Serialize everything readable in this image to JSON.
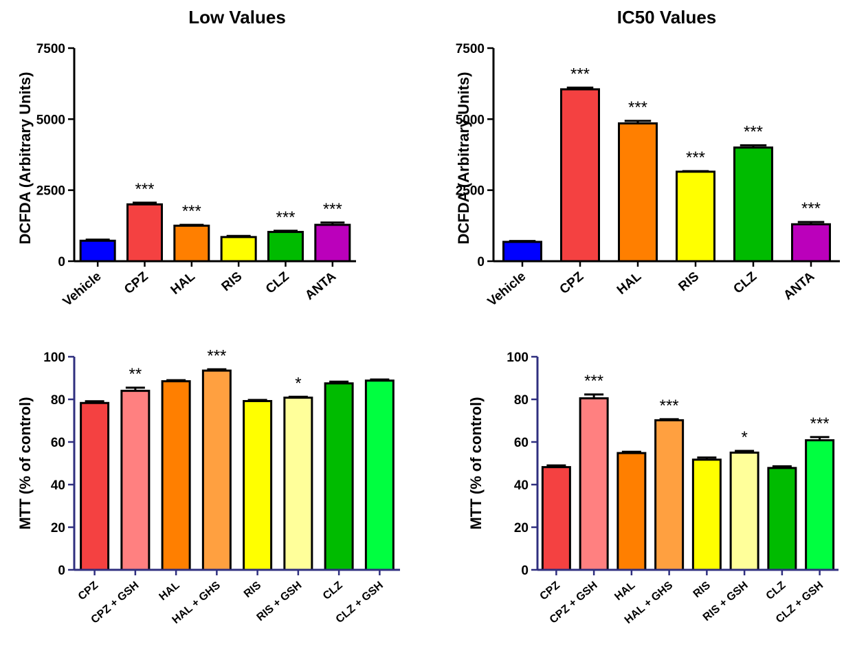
{
  "chart_data": [
    {
      "type": "bar",
      "title": "Low Values",
      "ylabel": "DCFDA (Arbitrary Units)",
      "ylim": [
        0,
        7500
      ],
      "yticks": [
        0,
        2500,
        5000,
        7500
      ],
      "grid": false,
      "categories": [
        "Vehicle",
        "CPZ",
        "HAL",
        "RIS",
        "CLZ",
        "ANTA"
      ],
      "values": [
        720,
        2000,
        1250,
        850,
        1030,
        1280
      ],
      "errors": [
        40,
        60,
        30,
        40,
        40,
        80
      ],
      "colors": [
        "#0000ff",
        "#f44141",
        "#ff7f00",
        "#ffff00",
        "#00bb00",
        "#bb00bb"
      ],
      "significance": [
        "",
        "***",
        "***",
        "",
        "***",
        "***"
      ]
    },
    {
      "type": "bar",
      "title": "IC50 Values",
      "ylabel": "DCFDA (Arbitrary Units)",
      "ylim": [
        0,
        7500
      ],
      "yticks": [
        0,
        2500,
        5000,
        7500
      ],
      "grid": false,
      "categories": [
        "Vehicle",
        "CPZ",
        "HAL",
        "RIS",
        "CLZ",
        "ANTA"
      ],
      "values": [
        680,
        6050,
        4850,
        3150,
        4000,
        1300
      ],
      "errors": [
        30,
        60,
        90,
        20,
        80,
        80
      ],
      "colors": [
        "#0000ff",
        "#f44141",
        "#ff7f00",
        "#ffff00",
        "#00bb00",
        "#bb00bb"
      ],
      "significance": [
        "",
        "***",
        "***",
        "***",
        "***",
        "***"
      ]
    },
    {
      "type": "bar",
      "title": "",
      "ylabel": "MTT (% of control)",
      "ylim": [
        0,
        100
      ],
      "yticks": [
        0,
        20,
        40,
        60,
        80,
        100
      ],
      "grid": false,
      "categories": [
        "CPZ",
        "CPZ + GSH",
        "HAL",
        "HAL + GHS",
        "RIS",
        "RIS + GSH",
        "CLZ",
        "CLZ + GSH"
      ],
      "values": [
        78.3,
        84.0,
        88.5,
        93.5,
        79.2,
        80.8,
        87.5,
        88.8
      ],
      "errors": [
        0.8,
        1.5,
        0.5,
        0.6,
        0.5,
        0.4,
        0.8,
        0.5
      ],
      "colors": [
        "#f44141",
        "#ff8080",
        "#ff7f00",
        "#ffa040",
        "#ffff00",
        "#ffff9a",
        "#00bb00",
        "#00ff40"
      ],
      "significance": [
        "",
        "**",
        "",
        "***",
        "",
        "*",
        "",
        ""
      ]
    },
    {
      "type": "bar",
      "title": "",
      "ylabel": "MTT (% of control)",
      "ylim": [
        0,
        100
      ],
      "yticks": [
        0,
        20,
        40,
        60,
        80,
        100
      ],
      "grid": false,
      "categories": [
        "CPZ",
        "CPZ + GSH",
        "HAL",
        "HAL + GHS",
        "RIS",
        "RIS + GSH",
        "CLZ",
        "CLZ + GSH"
      ],
      "values": [
        48.2,
        80.5,
        54.8,
        70.2,
        51.7,
        55.0,
        47.8,
        60.8
      ],
      "errors": [
        0.8,
        1.8,
        0.6,
        0.5,
        1.0,
        0.8,
        0.8,
        1.5
      ],
      "colors": [
        "#f44141",
        "#ff8080",
        "#ff7f00",
        "#ffa040",
        "#ffff00",
        "#ffff9a",
        "#00bb00",
        "#00ff40"
      ],
      "significance": [
        "",
        "***",
        "",
        "***",
        "",
        "*",
        "",
        "***"
      ]
    }
  ]
}
